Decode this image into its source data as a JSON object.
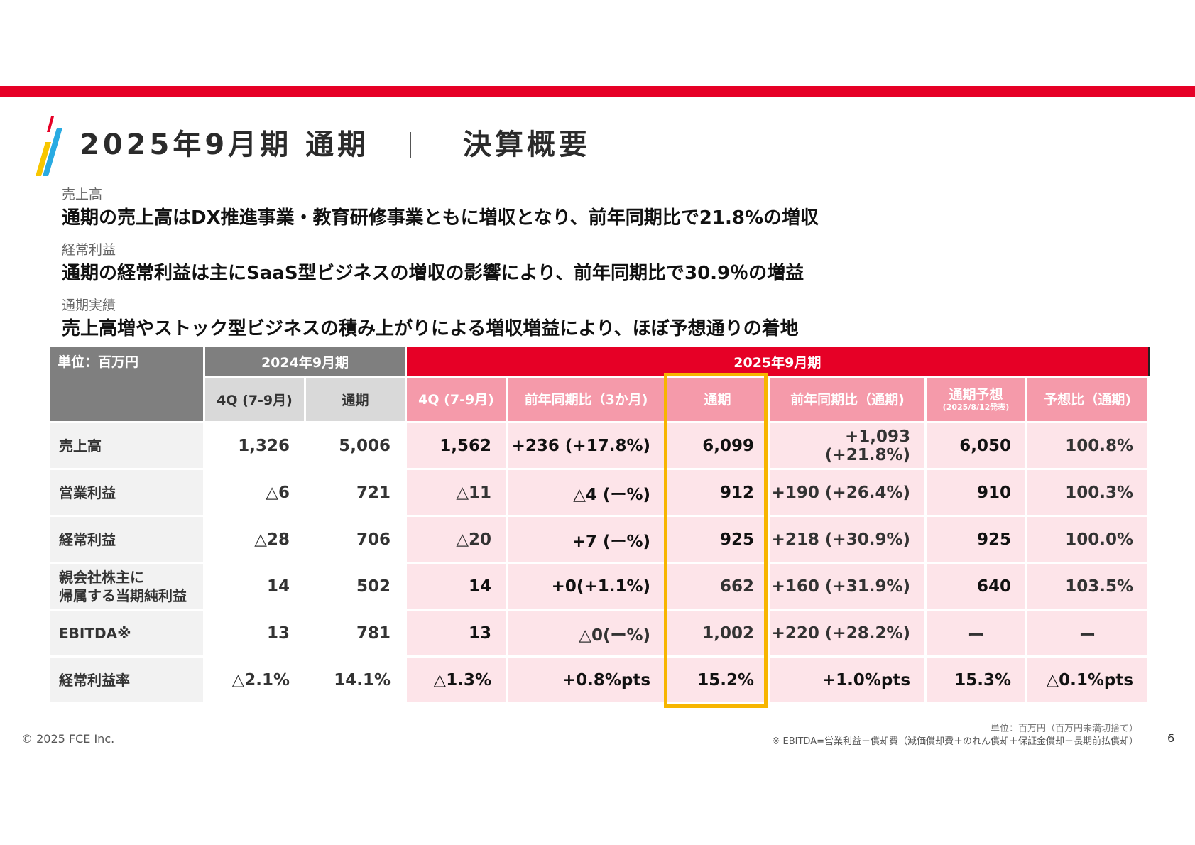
{
  "header": {
    "title": "2025年9月期 通期",
    "subtitle": "決算概要",
    "colors": {
      "accent_red": "#e60026",
      "logo_yellow": "#f7c600",
      "logo_blue": "#29abe2",
      "highlight": "#f7b500"
    }
  },
  "summary": [
    {
      "label": "売上高",
      "text": "通期の売上高はDX推進事業・教育研修事業ともに増収となり、前年同期比で21.8%の増収"
    },
    {
      "label": "経常利益",
      "text": "通期の経常利益は主にSaaS型ビジネスの増収の影響により、前年同期比で30.9％の増益"
    },
    {
      "label": "通期実績",
      "text": "売上高増やストック型ビジネスの積み上がりによる増収増益により、ほぼ予想通りの着地"
    }
  ],
  "table": {
    "unit_label": "単位：百万円",
    "group_2024": "2024年9月期",
    "group_2025": "2025年9月期",
    "columns": {
      "c1": "4Q (7-9月)",
      "c2": "通期",
      "c3": "4Q (7-9月)",
      "c4": "前年同期比（3か月)",
      "c5": "通期",
      "c6": "前年同期比（通期)",
      "c7": "通期予想",
      "c7_sub": "(2025/8/12発表)",
      "c8": "予想比（通期)"
    },
    "rows": [
      {
        "label": "売上高",
        "label2": "",
        "v": [
          "1,326",
          "5,006",
          "1,562",
          "+236 (+17.8%)",
          "6,099",
          "+1,093 (+21.8%)",
          "6,050",
          "100.8%"
        ]
      },
      {
        "label": "営業利益",
        "label2": "",
        "v": [
          "△6",
          "721",
          "△11",
          "△4 (ー%)",
          "912",
          "+190 (+26.4%)",
          "910",
          "100.3%"
        ]
      },
      {
        "label": "経常利益",
        "label2": "",
        "v": [
          "△28",
          "706",
          "△20",
          "+7 (ー%)",
          "925",
          "+218 (+30.9%)",
          "925",
          "100.0%"
        ]
      },
      {
        "label": "親会社株主に",
        "label2": "帰属する当期純利益",
        "v": [
          "14",
          "502",
          "14",
          "+0(+1.1%)",
          "662",
          "+160 (+31.9%)",
          "640",
          "103.5%"
        ]
      },
      {
        "label": "EBITDA※",
        "label2": "",
        "v": [
          "13",
          "781",
          "13",
          "△0(ー%)",
          "1,002",
          "+220 (+28.2%)",
          "ー",
          "ー"
        ]
      },
      {
        "label": "経常利益率",
        "label2": "",
        "v": [
          "△2.1%",
          "14.1%",
          "△1.3%",
          "+0.8%pts",
          "15.2%",
          "+1.0%pts",
          "15.3%",
          "△0.1%pts"
        ]
      }
    ]
  },
  "footer": {
    "copyright": "© 2025 FCE Inc.",
    "note_unit": "単位：百万円（百万円未満切捨て）",
    "note_ebitda": "※ EBITDA=営業利益＋償却費（減価償却費＋のれん償却＋保証金償却＋長期前払償却）",
    "page_number": "6"
  }
}
